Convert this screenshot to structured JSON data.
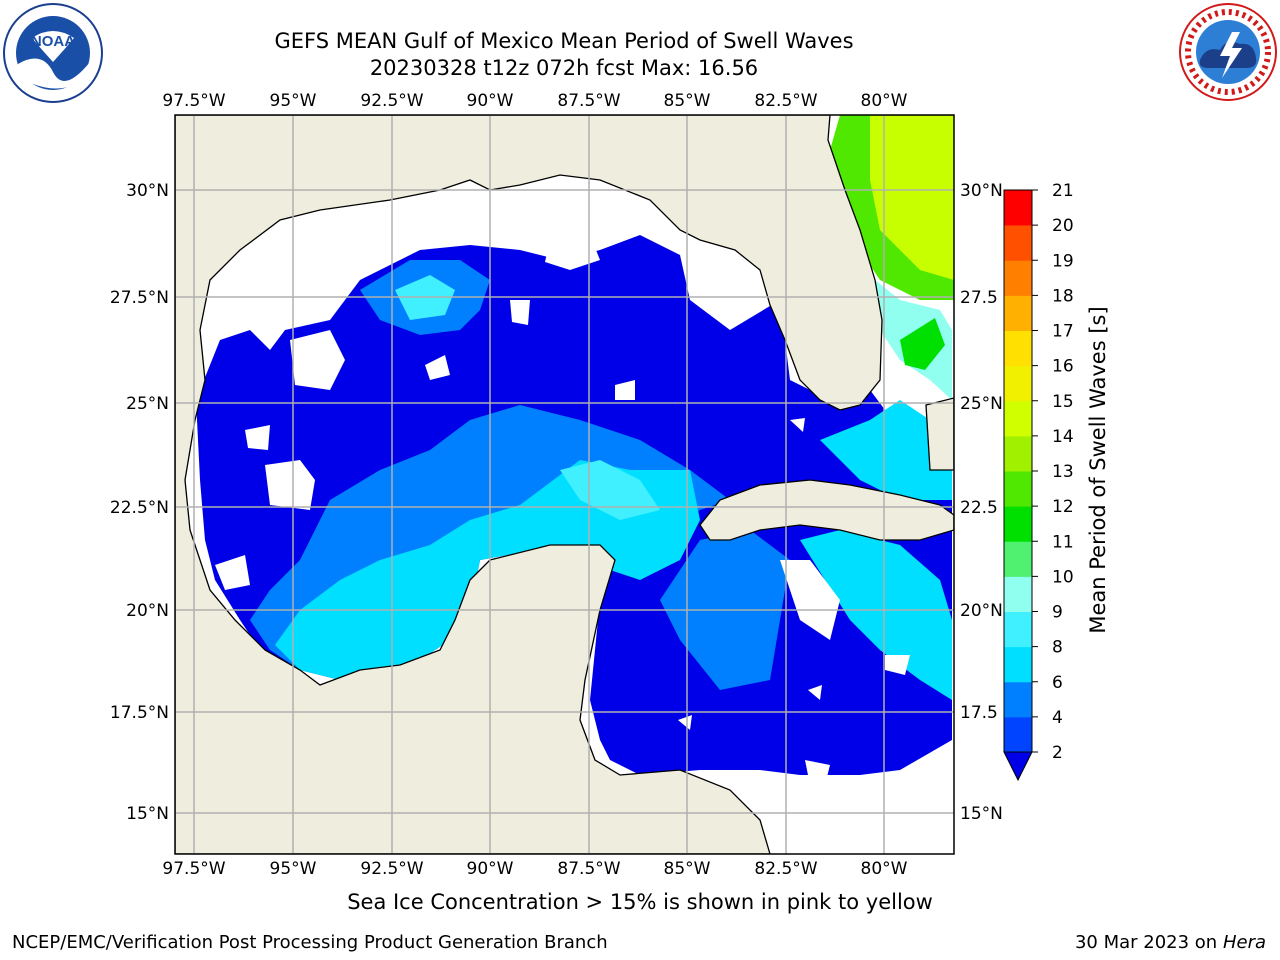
{
  "header": {
    "title_line1": "GEFS MEAN Gulf of Mexico Mean Period of Swell Waves",
    "title_line2": "20230328 t12z 072h fcst   Max: 16.56"
  },
  "logos": {
    "left": "noaa-logo",
    "left_text": "NOAA",
    "left_ring": "NATIONAL OCEANIC AND ATMOSPHERIC ADMINISTRATION · U.S. DEPARTMENT OF COMMERCE",
    "right": "nws-logo",
    "right_ring": "NATIONAL WEATHER SERVICE"
  },
  "map": {
    "lon_labels": [
      "97.5°W",
      "95°W",
      "92.5°W",
      "90°W",
      "87.5°W",
      "85°W",
      "82.5°W",
      "80°W"
    ],
    "lat_labels_left": [
      "30°N",
      "27.5°N",
      "25°N",
      "22.5°N",
      "20°N",
      "17.5°N",
      "15°N"
    ],
    "lat_labels_right": [
      "30°N",
      "27.5",
      "25°N",
      "22.5",
      "20°N",
      "17.5",
      "15°N"
    ],
    "land_color": "#eeedde",
    "grid_color": "#b0b0b0"
  },
  "colorbar": {
    "label": "Mean Period of Swell Waves [s]",
    "ticks": [
      "2",
      "4",
      "6",
      "8",
      "9",
      "10",
      "11",
      "12",
      "13",
      "14",
      "15",
      "16",
      "17",
      "18",
      "19",
      "20",
      "21"
    ],
    "colors": [
      "#0044ff",
      "#0080ff",
      "#00dfff",
      "#40f0ff",
      "#90fff0",
      "#50f070",
      "#00e000",
      "#50e800",
      "#a0f000",
      "#d0ff00",
      "#f0f000",
      "#ffe000",
      "#ffb000",
      "#ff8000",
      "#ff5000",
      "#ff2000",
      "#ff0000"
    ],
    "below_color": "#0000e8"
  },
  "footer": {
    "note": "Sea Ice Concentration > 15% is shown in pink to yellow",
    "left": "NCEP/EMC/Verification Post Processing Product Generation Branch",
    "right_date": "30 Mar 2023 on",
    "right_machine": "Hera"
  }
}
